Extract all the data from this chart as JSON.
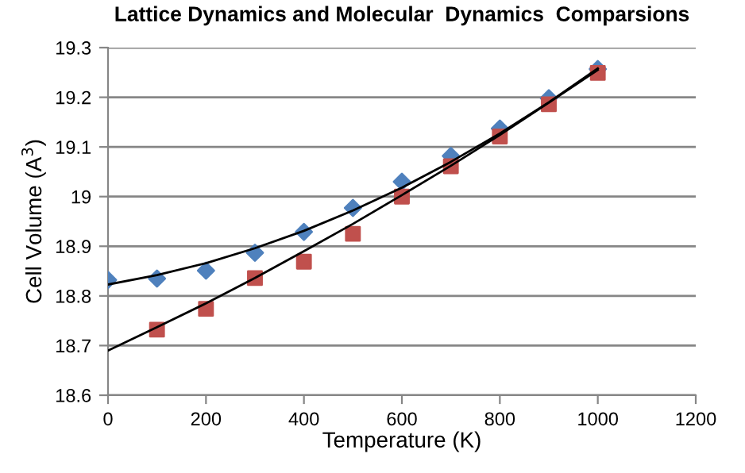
{
  "chart_data": {
    "type": "scatter",
    "title": "Lattice Dynamics and Molecular  Dynamics  Comparsions",
    "xlabel": "Temperature (K)",
    "ylabel": "Cell Volume (A$^{3}$)",
    "x": [
      0,
      100,
      200,
      300,
      400,
      500,
      600,
      700,
      800,
      900,
      1000
    ],
    "series": [
      {
        "marker": "diamond",
        "color": "#4f81bd",
        "values": [
          18.832,
          18.835,
          18.851,
          18.887,
          18.929,
          18.977,
          19.03,
          19.082,
          19.137,
          19.198,
          19.257
        ]
      },
      {
        "marker": "square",
        "color": "#c0504d",
        "values": [
          null,
          18.732,
          18.774,
          18.836,
          18.869,
          18.925,
          19.0,
          19.061,
          19.121,
          19.186,
          19.249
        ]
      },
      {
        "type": "line",
        "marker": "none",
        "color": "#000000",
        "values": [
          18.823,
          18.842,
          18.866,
          18.896,
          18.931,
          18.972,
          19.018,
          19.07,
          19.127,
          19.19,
          19.258
        ]
      },
      {
        "type": "line",
        "marker": "none",
        "color": "#000000",
        "values": [
          18.69,
          18.737,
          18.785,
          18.836,
          18.89,
          18.945,
          19.003,
          19.062,
          19.124,
          19.189,
          19.255
        ]
      }
    ],
    "xlim": [
      0,
      1200
    ],
    "xticks": [
      0,
      200,
      400,
      600,
      800,
      1000,
      1200
    ],
    "ylim": [
      18.6,
      19.3
    ],
    "yticks": [
      18.6,
      18.7,
      18.8,
      18.9,
      19,
      19.1,
      19.2,
      19.3
    ],
    "grid": "y",
    "legend": false
  }
}
